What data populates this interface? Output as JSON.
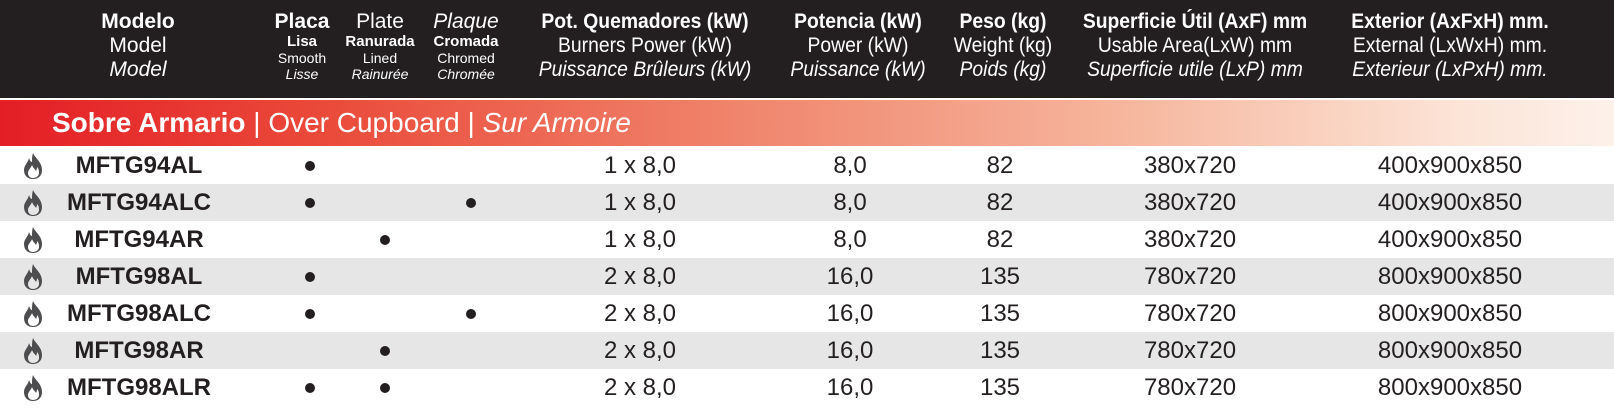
{
  "header": {
    "model": {
      "es": "Modelo",
      "en": "Model",
      "fr": "Model"
    },
    "plate_es": "Placa",
    "plate_en": "Plate",
    "plate_fr": "Plaque",
    "smooth": {
      "es": "Lisa",
      "en": "Smooth",
      "fr": "Lisse"
    },
    "lined": {
      "es": "Ranurada",
      "en": "Lined",
      "fr": "Rainurée"
    },
    "chromed": {
      "es": "Cromada",
      "en": "Chromed",
      "fr": "Chromée"
    },
    "burners": {
      "es": "Pot. Quemadores (kW)",
      "en": "Burners Power (kW)",
      "fr": "Puissance Brûleurs (kW)"
    },
    "power": {
      "es": "Potencia (kW)",
      "en": "Power (kW)",
      "fr": "Puissance (kW)"
    },
    "weight": {
      "es": "Peso (kg)",
      "en": "Weight (kg)",
      "fr": "Poids (kg)"
    },
    "usable": {
      "es": "Superficie Útil (AxF) mm",
      "en": "Usable Area(LxW) mm",
      "fr": "Superficie utile (LxP) mm"
    },
    "external": {
      "es": "Exterior (AxFxH) mm.",
      "en": "External (LxWxH) mm.",
      "fr": "Exterieur (LxPxH) mm."
    }
  },
  "section": {
    "es": "Sobre Armario",
    "sep": " | ",
    "en": "Over Cupboard",
    "fr": "Sur Armoire"
  },
  "rows": [
    {
      "model": "MFTG94AL",
      "smooth": true,
      "lined": false,
      "chromed": false,
      "burners": "1 x 8,0",
      "power": "8,0",
      "weight": "82",
      "usable": "380x720",
      "external": "400x900x850"
    },
    {
      "model": "MFTG94ALC",
      "smooth": true,
      "lined": false,
      "chromed": true,
      "burners": "1 x 8,0",
      "power": "8,0",
      "weight": "82",
      "usable": "380x720",
      "external": "400x900x850"
    },
    {
      "model": "MFTG94AR",
      "smooth": false,
      "lined": true,
      "chromed": false,
      "burners": "1 x 8,0",
      "power": "8,0",
      "weight": "82",
      "usable": "380x720",
      "external": "400x900x850"
    },
    {
      "model": "MFTG98AL",
      "smooth": true,
      "lined": false,
      "chromed": false,
      "burners": "2 x 8,0",
      "power": "16,0",
      "weight": "135",
      "usable": "780x720",
      "external": "800x900x850"
    },
    {
      "model": "MFTG98ALC",
      "smooth": true,
      "lined": false,
      "chromed": true,
      "burners": "2 x 8,0",
      "power": "16,0",
      "weight": "135",
      "usable": "780x720",
      "external": "800x900x850"
    },
    {
      "model": "MFTG98AR",
      "smooth": false,
      "lined": true,
      "chromed": false,
      "burners": "2 x 8,0",
      "power": "16,0",
      "weight": "135",
      "usable": "780x720",
      "external": "800x900x850"
    },
    {
      "model": "MFTG98ALR",
      "smooth": true,
      "lined": true,
      "chromed": false,
      "burners": "2 x 8,0",
      "power": "16,0",
      "weight": "135",
      "usable": "780x720",
      "external": "800x900x850"
    }
  ],
  "icons": {
    "row_icon": "gas-flame-icon"
  },
  "colors": {
    "header_bg": "#231f20",
    "band_start": "#e41e26",
    "alt_row": "#e6e6e7"
  }
}
